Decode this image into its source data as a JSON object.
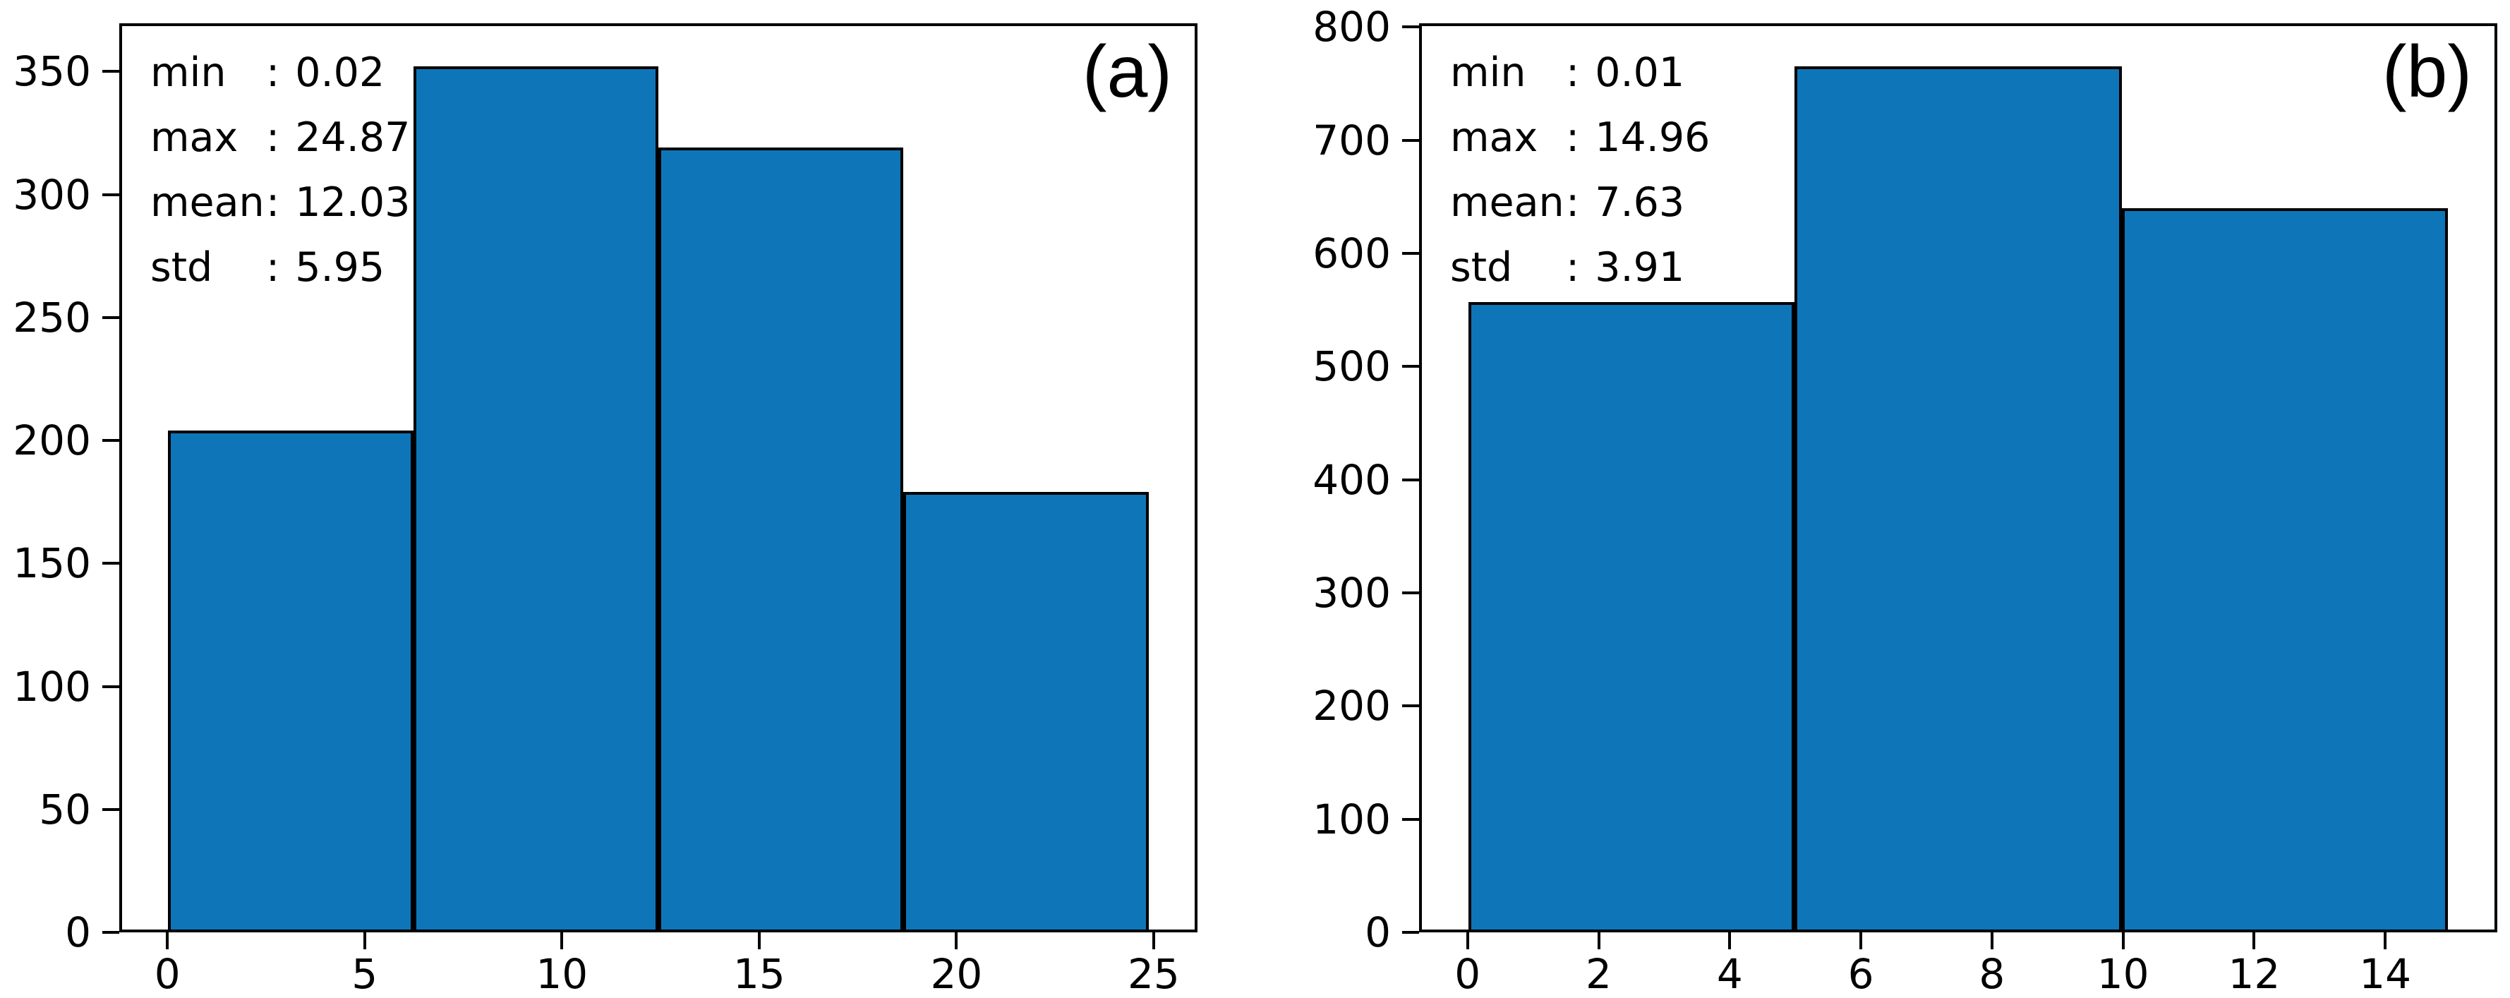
{
  "figure": {
    "background": "#ffffff",
    "bar_fill": "#0e76b8",
    "bar_edge": "#000000",
    "text_color": "#000000"
  },
  "chart_data": [
    {
      "type": "histogram",
      "panel_label": "(a)",
      "stats": [
        {
          "label": "min",
          "sep": ":",
          "value": "0.02"
        },
        {
          "label": "max",
          "sep": ":",
          "value": "24.87"
        },
        {
          "label": "mean",
          "sep": ":",
          "value": "12.03"
        },
        {
          "label": "std",
          "sep": ":",
          "value": "5.95"
        }
      ],
      "bin_edges": [
        0.02,
        6.23,
        12.45,
        18.66,
        24.87
      ],
      "counts": [
        204,
        352,
        319,
        179
      ],
      "xticks": [
        0,
        5,
        10,
        15,
        20,
        25
      ],
      "yticks": [
        0,
        50,
        100,
        150,
        200,
        250,
        300,
        350
      ],
      "xlim": [
        -1.22,
        26.11
      ],
      "ylim": [
        0,
        369.6
      ],
      "grid": false,
      "legend": "none"
    },
    {
      "type": "histogram",
      "panel_label": "(b)",
      "stats": [
        {
          "label": "min",
          "sep": ":",
          "value": "0.01"
        },
        {
          "label": "max",
          "sep": ":",
          "value": "14.96"
        },
        {
          "label": "mean",
          "sep": ":",
          "value": "7.63"
        },
        {
          "label": "std",
          "sep": ":",
          "value": "3.91"
        }
      ],
      "bin_edges": [
        0.01,
        4.99,
        9.98,
        14.96
      ],
      "counts": [
        557,
        765,
        640
      ],
      "xticks": [
        0,
        2,
        4,
        6,
        8,
        10,
        12,
        14
      ],
      "yticks": [
        0,
        100,
        200,
        300,
        400,
        500,
        600,
        700,
        800
      ],
      "xlim": [
        -0.74,
        15.71
      ],
      "ylim": [
        0,
        803.25
      ],
      "grid": false,
      "legend": "none"
    }
  ]
}
